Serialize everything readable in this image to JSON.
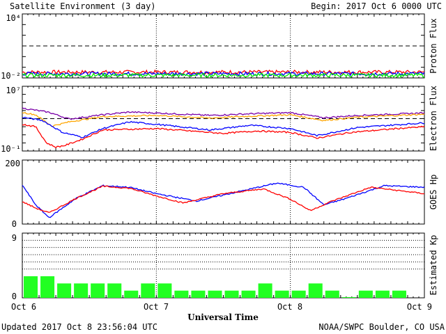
{
  "header": {
    "title": "Satellite Environment (3 day)",
    "begin": "Begin:  2017 Oct 6 0000 UTC"
  },
  "footer": {
    "updated": "Updated 2017 Oct  8 23:56:04 UTC",
    "source": "NOAA/SWPC Boulder, CO USA",
    "xlabel": "Universal Time"
  },
  "x_ticks": [
    "Oct 6",
    "Oct 7",
    "Oct 8",
    "Oct 9"
  ],
  "colors": {
    "red": "#ff0000",
    "blue": "#0000ff",
    "green": "#00ee00",
    "purple": "#7a00a8",
    "orange": "#ffa500",
    "kp_bar": "#22ff22"
  },
  "chart_data": [
    {
      "type": "line",
      "ylabel": "Proton Flux",
      "yscale": "log",
      "ylim": [
        0.01,
        10000
      ],
      "ytick_labels": [
        "10⁴",
        "10⁻²"
      ],
      "threshold": 10,
      "xlim_days": [
        0,
        3
      ],
      "series": [
        {
          "color": "red",
          "level": 0.035
        },
        {
          "color": "blue",
          "level": 0.025
        },
        {
          "color": "green",
          "level": 0.018
        }
      ]
    },
    {
      "type": "line",
      "ylabel": "Electron Flux",
      "yscale": "log",
      "ylim": [
        0.1,
        10000000
      ],
      "ytick_labels": [
        "10⁷",
        "10⁻¹"
      ],
      "threshold": 1000,
      "xlim_days": [
        0,
        3
      ],
      "series": [
        {
          "color": "purple",
          "x": [
            0,
            0.2,
            0.35,
            0.6,
            0.8,
            1.0,
            1.4,
            1.7,
            2.0,
            2.25,
            2.5,
            3.0
          ],
          "y": [
            20000,
            6000,
            900,
            3000,
            6500,
            5000,
            2500,
            4000,
            5500,
            1300,
            2500,
            5000
          ]
        },
        {
          "color": "orange",
          "x": [
            0,
            0.1,
            0.22,
            0.35,
            0.6,
            1.0,
            1.4,
            1.7,
            2.0,
            2.25,
            2.5,
            3.0
          ],
          "y": [
            6000,
            3000,
            120,
            400,
            1800,
            2500,
            1200,
            2000,
            3000,
            600,
            1500,
            3500
          ]
        },
        {
          "color": "blue",
          "x": [
            0,
            0.15,
            0.3,
            0.45,
            0.6,
            0.8,
            1.0,
            1.4,
            1.7,
            2.0,
            2.2,
            2.5,
            3.0
          ],
          "y": [
            1500,
            600,
            20,
            5,
            60,
            400,
            200,
            40,
            150,
            60,
            8,
            80,
            300
          ]
        },
        {
          "color": "red",
          "x": [
            0,
            0.1,
            0.18,
            0.25,
            0.32,
            0.45,
            0.6,
            1.0,
            1.5,
            1.75,
            2.0,
            2.2,
            2.45,
            2.8,
            3.0
          ],
          "y": [
            200,
            100,
            1,
            0.3,
            0.5,
            3,
            40,
            60,
            15,
            30,
            20,
            4,
            20,
            60,
            100
          ]
        }
      ]
    },
    {
      "type": "line",
      "ylabel": "GOES Hp",
      "ylim": [
        0,
        200
      ],
      "ytick_labels": [
        "200",
        "0"
      ],
      "xlim_days": [
        0,
        3
      ],
      "series": [
        {
          "color": "blue",
          "x": [
            0,
            0.1,
            0.2,
            0.4,
            0.6,
            0.8,
            1.0,
            1.3,
            1.6,
            1.9,
            2.1,
            2.25,
            2.4,
            2.7,
            3.0
          ],
          "y": [
            122,
            60,
            20,
            80,
            120,
            115,
            95,
            72,
            100,
            128,
            115,
            60,
            78,
            120,
            115
          ]
        },
        {
          "color": "red",
          "x": [
            0,
            0.1,
            0.2,
            0.4,
            0.6,
            0.8,
            1.0,
            1.2,
            1.5,
            1.8,
            2.0,
            2.15,
            2.3,
            2.6,
            3.0
          ],
          "y": [
            70,
            50,
            35,
            80,
            118,
            112,
            88,
            66,
            95,
            110,
            78,
            42,
            70,
            115,
            95
          ]
        }
      ]
    },
    {
      "type": "bar",
      "ylabel": "Estimated Kp",
      "ylim": [
        0,
        9
      ],
      "ytick_labels": [
        "9",
        "0"
      ],
      "gridlines": [
        4,
        5,
        6,
        7,
        8
      ],
      "xlim_days": [
        0,
        3
      ],
      "values": [
        3,
        3,
        2,
        2,
        2,
        2,
        1,
        2,
        2,
        1,
        1,
        1,
        1,
        1,
        2,
        1,
        1,
        2,
        1,
        0.1,
        1,
        1,
        1,
        0
      ]
    }
  ]
}
